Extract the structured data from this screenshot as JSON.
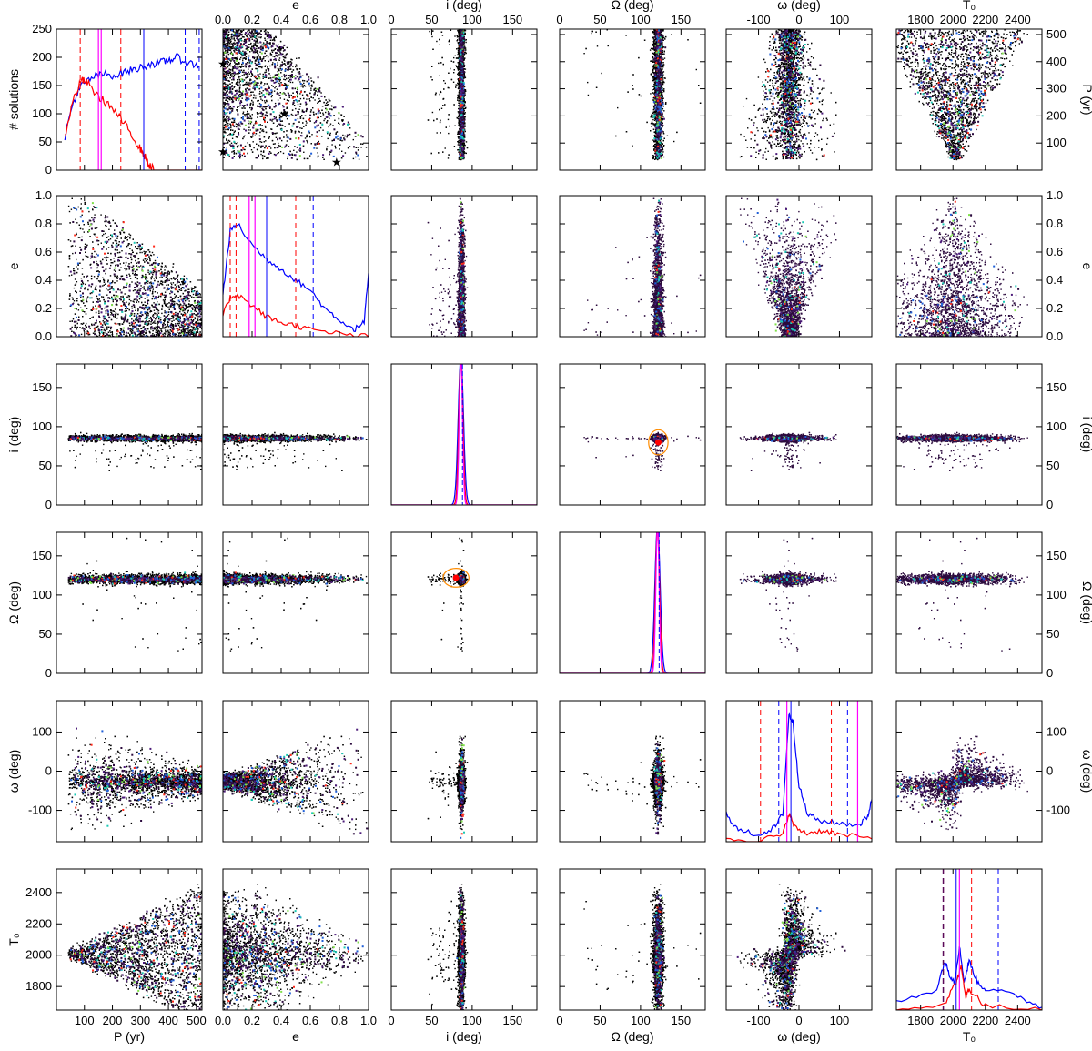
{
  "chart_data": {
    "type": "scatter",
    "layout": "corner-plot 6x6",
    "parameters": [
      {
        "key": "P",
        "label": "P (yr)",
        "lim": [
          0,
          520
        ],
        "ticks": [
          100,
          200,
          300,
          400,
          500
        ],
        "hist_label": "# solutions",
        "hist_lim": [
          0,
          250
        ],
        "hist_ticks": [
          0,
          50,
          100,
          150,
          200,
          250
        ],
        "right_ticks": [
          100,
          200,
          300,
          400,
          500
        ]
      },
      {
        "key": "e",
        "label": "e",
        "lim": [
          0,
          1
        ],
        "ticks": [
          0.0,
          0.2,
          0.4,
          0.6,
          0.8,
          1.0
        ],
        "tick_labels": [
          "0.0",
          "0.2",
          "0.4",
          "0.6",
          "0.8",
          "1.0"
        ]
      },
      {
        "key": "i",
        "label": "i (deg)",
        "lim": [
          0,
          180
        ],
        "ticks": [
          0,
          50,
          100,
          150
        ]
      },
      {
        "key": "Omega",
        "label": "Ω (deg)",
        "lim": [
          0,
          180
        ],
        "ticks": [
          0,
          50,
          100,
          150
        ]
      },
      {
        "key": "omega",
        "label": "ω (deg)",
        "lim": [
          -180,
          180
        ],
        "ticks": [
          -100,
          0,
          100
        ]
      },
      {
        "key": "T0",
        "label": "T₀",
        "lim": [
          1650,
          2550
        ],
        "ticks": [
          1800,
          2000,
          2200,
          2400
        ]
      }
    ],
    "series": [
      {
        "name": "",
        "color": "#0000ff"
      },
      {
        "name": "",
        "color": "#ff0000"
      },
      {
        "name": "",
        "color": "#ff00ff"
      }
    ],
    "histograms": {
      "P": {
        "blue_curve": [
          [
            30,
            60
          ],
          [
            60,
            120
          ],
          [
            90,
            150
          ],
          [
            130,
            165
          ],
          [
            170,
            170
          ],
          [
            210,
            168
          ],
          [
            250,
            175
          ],
          [
            290,
            180
          ],
          [
            330,
            188
          ],
          [
            370,
            190
          ],
          [
            400,
            195
          ],
          [
            430,
            200
          ],
          [
            470,
            190
          ],
          [
            510,
            185
          ]
        ],
        "red_curve": [
          [
            30,
            60
          ],
          [
            60,
            125
          ],
          [
            90,
            160
          ],
          [
            110,
            155
          ],
          [
            150,
            130
          ],
          [
            190,
            115
          ],
          [
            230,
            90
          ],
          [
            260,
            70
          ],
          [
            290,
            45
          ],
          [
            310,
            30
          ],
          [
            330,
            10
          ],
          [
            350,
            0
          ],
          [
            520,
            0
          ]
        ],
        "median_lines": {
          "magenta": [
            150,
            160
          ],
          "blue": 312
        },
        "interval_lines": {
          "red": [
            85,
            230
          ],
          "blue": [
            460,
            510
          ]
        }
      },
      "e": {
        "blue_curve": [
          [
            0.0,
            0.3
          ],
          [
            0.05,
            0.75
          ],
          [
            0.1,
            0.8
          ],
          [
            0.2,
            0.65
          ],
          [
            0.3,
            0.55
          ],
          [
            0.4,
            0.48
          ],
          [
            0.5,
            0.4
          ],
          [
            0.6,
            0.33
          ],
          [
            0.7,
            0.2
          ],
          [
            0.8,
            0.12
          ],
          [
            0.9,
            0.05
          ],
          [
            0.97,
            0.1
          ],
          [
            1.0,
            0.45
          ]
        ],
        "red_curve": [
          [
            0.0,
            0.15
          ],
          [
            0.05,
            0.28
          ],
          [
            0.1,
            0.3
          ],
          [
            0.2,
            0.22
          ],
          [
            0.3,
            0.14
          ],
          [
            0.4,
            0.1
          ],
          [
            0.5,
            0.08
          ],
          [
            0.6,
            0.05
          ],
          [
            0.8,
            0.02
          ],
          [
            1.0,
            0.0
          ]
        ],
        "median_lines": {
          "magenta": [
            0.18,
            0.22
          ],
          "blue": 0.3
        },
        "interval_lines": {
          "red": [
            0.05,
            0.09,
            0.5
          ],
          "blue": [
            0.62
          ]
        }
      },
      "i": {
        "peak": 86,
        "width": 2.5
      },
      "Omega": {
        "peak": 121,
        "width": 2.5
      },
      "omega": {
        "blue_curve": [
          [
            -180,
            0.2
          ],
          [
            -150,
            0.08
          ],
          [
            -100,
            0.05
          ],
          [
            -60,
            0.1
          ],
          [
            -40,
            0.2
          ],
          [
            -25,
            0.9
          ],
          [
            -15,
            0.85
          ],
          [
            0,
            0.4
          ],
          [
            20,
            0.2
          ],
          [
            50,
            0.15
          ],
          [
            100,
            0.13
          ],
          [
            150,
            0.12
          ],
          [
            170,
            0.18
          ],
          [
            180,
            0.3
          ]
        ],
        "red_curve": [
          [
            -180,
            0.02
          ],
          [
            -100,
            0.01
          ],
          [
            -40,
            0.05
          ],
          [
            -25,
            0.2
          ],
          [
            -10,
            0.1
          ],
          [
            20,
            0.06
          ],
          [
            60,
            0.08
          ],
          [
            100,
            0.05
          ],
          [
            180,
            0.02
          ]
        ],
        "median_lines": {
          "magenta": [
            -30,
            145
          ],
          "blue": -20
        },
        "interval_lines": {
          "red": [
            -95,
            80
          ],
          "blue": [
            -50,
            120
          ]
        }
      },
      "T0": {
        "blue_curve": [
          [
            1650,
            0.05
          ],
          [
            1900,
            0.15
          ],
          [
            1950,
            0.35
          ],
          [
            1980,
            0.25
          ],
          [
            2010,
            0.2
          ],
          [
            2040,
            0.45
          ],
          [
            2070,
            0.2
          ],
          [
            2100,
            0.35
          ],
          [
            2150,
            0.2
          ],
          [
            2200,
            0.15
          ],
          [
            2400,
            0.1
          ],
          [
            2550,
            0.02
          ]
        ],
        "red_curve": [
          [
            1650,
            0.0
          ],
          [
            1950,
            0.05
          ],
          [
            2020,
            0.2
          ],
          [
            2050,
            0.3
          ],
          [
            2080,
            0.1
          ],
          [
            2100,
            0.15
          ],
          [
            2200,
            0.03
          ],
          [
            2550,
            0.0
          ]
        ],
        "median_lines": {
          "magenta": [
            2040
          ],
          "blue": 2020
        },
        "interval_lines": {
          "red": [
            1940,
            2115
          ],
          "blue": [
            2280
          ],
          "purple": [
            1940
          ]
        }
      }
    },
    "scatter_markers": {
      "orange_stars_Pe": [
        [
          0.0,
          395
        ],
        [
          0.42,
          210
        ]
      ],
      "green_stars_Pe": [
        [
          0.0,
          70
        ],
        [
          0.78,
          32
        ]
      ],
      "orange_ellipse_iOmega": {
        "center": [
          80,
          122
        ],
        "radius": [
          12,
          16
        ]
      }
    }
  }
}
